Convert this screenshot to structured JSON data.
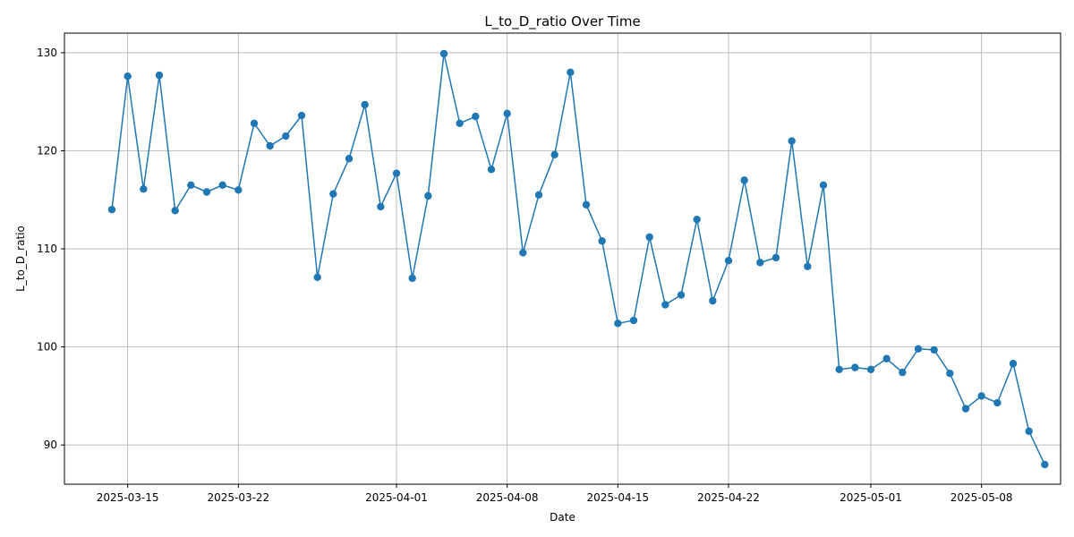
{
  "chart_data": {
    "type": "line",
    "title": "L_to_D_ratio Over Time",
    "xlabel": "Date",
    "ylabel": "L_to_D_ratio",
    "xlim": [
      "2025-03-11",
      "2025-05-13"
    ],
    "ylim": [
      86,
      132
    ],
    "x_ticks": [
      "2025-03-15",
      "2025-03-22",
      "2025-04-01",
      "2025-04-08",
      "2025-04-15",
      "2025-04-22",
      "2025-05-01",
      "2025-05-08"
    ],
    "y_ticks": [
      90,
      100,
      110,
      120,
      130
    ],
    "grid": true,
    "marker": "circle",
    "colors": {
      "series": "#1f77b4",
      "grid": "#b0b0b0",
      "axis": "#000000"
    },
    "series": [
      {
        "x": [
          "2025-03-14",
          "2025-03-15",
          "2025-03-16",
          "2025-03-17",
          "2025-03-18",
          "2025-03-19",
          "2025-03-20",
          "2025-03-21",
          "2025-03-22",
          "2025-03-23",
          "2025-03-24",
          "2025-03-25",
          "2025-03-26",
          "2025-03-27",
          "2025-03-28",
          "2025-03-29",
          "2025-03-30",
          "2025-03-31",
          "2025-04-01",
          "2025-04-02",
          "2025-04-03",
          "2025-04-04",
          "2025-04-05",
          "2025-04-06",
          "2025-04-07",
          "2025-04-08",
          "2025-04-09",
          "2025-04-10",
          "2025-04-11",
          "2025-04-12",
          "2025-04-13",
          "2025-04-14",
          "2025-04-15",
          "2025-04-16",
          "2025-04-17",
          "2025-04-18",
          "2025-04-19",
          "2025-04-20",
          "2025-04-21",
          "2025-04-22",
          "2025-04-23",
          "2025-04-24",
          "2025-04-25",
          "2025-04-26",
          "2025-04-27",
          "2025-04-28",
          "2025-04-29",
          "2025-04-30",
          "2025-05-01",
          "2025-05-02",
          "2025-05-03",
          "2025-05-04",
          "2025-05-05",
          "2025-05-06",
          "2025-05-07",
          "2025-05-08",
          "2025-05-09",
          "2025-05-10",
          "2025-05-11",
          "2025-05-12"
        ],
        "y": [
          114.0,
          127.6,
          116.1,
          127.7,
          113.9,
          116.5,
          115.8,
          116.5,
          116.0,
          122.8,
          120.5,
          121.5,
          123.6,
          107.1,
          115.6,
          119.2,
          124.7,
          114.3,
          117.7,
          107.0,
          115.4,
          129.9,
          122.8,
          123.5,
          118.1,
          123.8,
          109.6,
          115.5,
          119.6,
          128.0,
          114.5,
          110.8,
          102.4,
          102.7,
          111.2,
          104.3,
          105.3,
          113.0,
          104.7,
          108.8,
          117.0,
          108.6,
          109.1,
          121.0,
          108.2,
          116.5,
          97.7,
          97.9,
          97.7,
          98.8,
          97.4,
          99.8,
          99.7,
          97.3,
          93.7,
          95.0,
          94.3,
          98.3,
          91.4,
          88.0
        ]
      }
    ]
  }
}
